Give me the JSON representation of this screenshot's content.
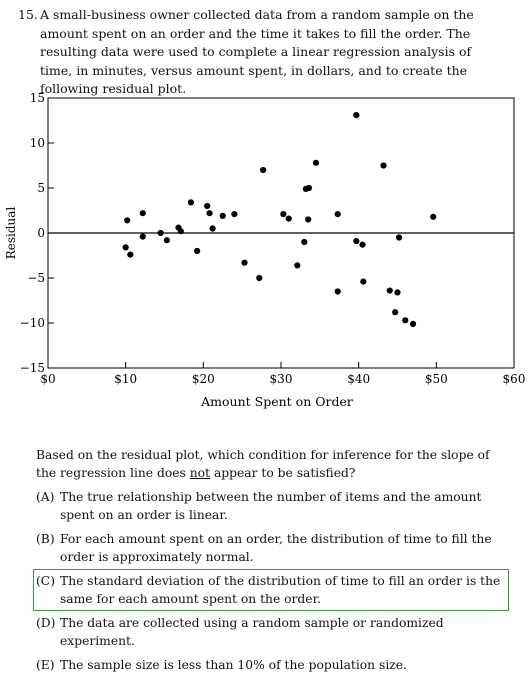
{
  "question": {
    "number": "15.",
    "stem": "A small-business owner collected data from a random sample on the amount spent on an order and the time it takes to fill the order. The resulting data were used to complete a linear regression analysis of time, in minutes, versus amount spent, in dollars, and to create the following residual plot."
  },
  "chart_data": {
    "type": "scatter",
    "xlabel": "Amount Spent on Order",
    "ylabel": "Residual",
    "xlim": [
      0,
      60
    ],
    "ylim": [
      -15,
      15
    ],
    "xticks": [
      0,
      10,
      20,
      30,
      40,
      50,
      60
    ],
    "xtick_labels": [
      "$0",
      "$10",
      "$20",
      "$30",
      "$40",
      "$50",
      "$60"
    ],
    "yticks": [
      15,
      10,
      5,
      0,
      -5,
      -10,
      -15
    ],
    "ytick_labels": [
      "15",
      "10",
      "5",
      "0",
      "−5",
      "−10",
      "−15"
    ],
    "reference_line_y": 0,
    "points": [
      {
        "x": 10.2,
        "y": 1.4
      },
      {
        "x": 10.0,
        "y": -1.6
      },
      {
        "x": 10.6,
        "y": -2.4
      },
      {
        "x": 12.2,
        "y": 2.2
      },
      {
        "x": 12.2,
        "y": -0.4
      },
      {
        "x": 14.5,
        "y": 0.0
      },
      {
        "x": 15.3,
        "y": -0.8
      },
      {
        "x": 16.8,
        "y": 0.6
      },
      {
        "x": 17.1,
        "y": 0.2
      },
      {
        "x": 18.4,
        "y": 3.4
      },
      {
        "x": 19.2,
        "y": -2.0
      },
      {
        "x": 20.5,
        "y": 3.0
      },
      {
        "x": 20.8,
        "y": 2.2
      },
      {
        "x": 21.2,
        "y": 0.5
      },
      {
        "x": 22.5,
        "y": 1.9
      },
      {
        "x": 24.0,
        "y": 2.1
      },
      {
        "x": 25.3,
        "y": -3.3
      },
      {
        "x": 27.2,
        "y": -5.0
      },
      {
        "x": 27.7,
        "y": 7.0
      },
      {
        "x": 30.3,
        "y": 2.1
      },
      {
        "x": 31.0,
        "y": 1.6
      },
      {
        "x": 32.1,
        "y": -3.6
      },
      {
        "x": 33.0,
        "y": -1.0
      },
      {
        "x": 33.2,
        "y": 4.9
      },
      {
        "x": 33.6,
        "y": 5.0
      },
      {
        "x": 33.5,
        "y": 1.5
      },
      {
        "x": 34.5,
        "y": 7.8
      },
      {
        "x": 37.3,
        "y": 2.1
      },
      {
        "x": 37.3,
        "y": -6.5
      },
      {
        "x": 39.7,
        "y": 13.1
      },
      {
        "x": 39.7,
        "y": -0.9
      },
      {
        "x": 40.5,
        "y": -1.3
      },
      {
        "x": 40.6,
        "y": -5.4
      },
      {
        "x": 43.2,
        "y": 7.5
      },
      {
        "x": 44.0,
        "y": -6.4
      },
      {
        "x": 45.0,
        "y": -6.6
      },
      {
        "x": 45.2,
        "y": -0.5
      },
      {
        "x": 44.7,
        "y": -8.8
      },
      {
        "x": 46.0,
        "y": -9.7
      },
      {
        "x": 47.0,
        "y": -10.1
      },
      {
        "x": 49.6,
        "y": 1.8
      }
    ]
  },
  "followup": {
    "prompt_before": "Based on the residual plot, which condition for inference for the slope of the regression line does ",
    "prompt_underlined": "not",
    "prompt_after": " appear to be satisfied?"
  },
  "choices": [
    {
      "label": "(A)",
      "text": "The true relationship between the number of items and the amount spent on an order is linear."
    },
    {
      "label": "(B)",
      "text": "For each amount spent on an order, the distribution of time to fill the order is approximately normal."
    },
    {
      "label": "(C)",
      "text": "The standard deviation of the distribution of time to fill an order is the same for each amount spent on the order."
    },
    {
      "label": "(D)",
      "text": "The data are collected using a random sample or randomized experiment."
    },
    {
      "label": "(E)",
      "text": "The sample size is less than 10% of the population size."
    }
  ],
  "colors": {
    "highlight_border": "#3a9a3a"
  }
}
